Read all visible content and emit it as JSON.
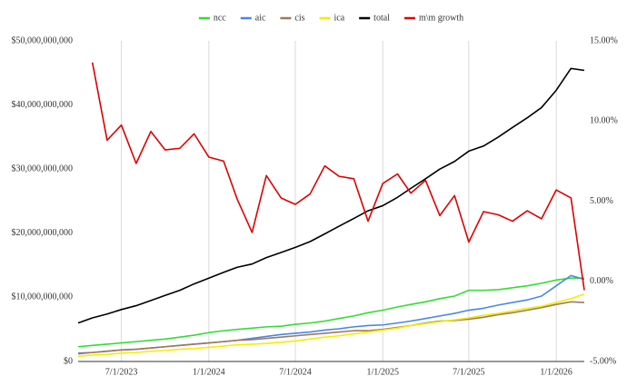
{
  "chart_data": {
    "type": "line",
    "x": [
      "4/1/2023",
      "5/1/2023",
      "6/1/2023",
      "7/1/2023",
      "8/1/2023",
      "9/1/2023",
      "10/1/2023",
      "11/1/2023",
      "12/1/2023",
      "1/1/2024",
      "2/1/2024",
      "3/1/2024",
      "4/1/2024",
      "5/1/2024",
      "6/1/2024",
      "7/1/2024",
      "8/1/2024",
      "9/1/2024",
      "10/1/2024",
      "11/1/2024",
      "12/1/2024",
      "1/1/2025",
      "2/1/2025",
      "3/1/2025",
      "4/1/2025",
      "5/1/2025",
      "6/1/2025",
      "7/1/2025",
      "8/1/2025",
      "9/1/2025",
      "10/1/2025",
      "11/1/2025",
      "12/1/2025",
      "1/1/2026",
      "2/1/2026",
      "3/1/2026"
    ],
    "xlim": [
      "4/1/2023",
      "3/1/2026"
    ],
    "xticks": [
      "7/1/2023",
      "1/1/2024",
      "7/1/2024",
      "1/1/2025",
      "7/1/2025",
      "1/1/2026"
    ],
    "ylim": [
      0,
      50000000000
    ],
    "yticks": [
      {
        "value": 0,
        "label": "$0"
      },
      {
        "value": 10000000000,
        "label": "$10,000,000,000"
      },
      {
        "value": 20000000000,
        "label": "$20,000,000,000"
      },
      {
        "value": 30000000000,
        "label": "$30,000,000,000"
      },
      {
        "value": 40000000000,
        "label": "$40,000,000,000"
      },
      {
        "value": 50000000000,
        "label": "$50,000,000,000"
      }
    ],
    "y2lim": [
      -5,
      15
    ],
    "y2ticks": [
      {
        "value": -5,
        "label": "-5.00%"
      },
      {
        "value": 0,
        "label": "0.00%"
      },
      {
        "value": 5,
        "label": "5.00%"
      },
      {
        "value": 10,
        "label": "10.00%"
      },
      {
        "value": 15,
        "label": "15.00%"
      }
    ],
    "grid": "x",
    "legend": "top",
    "series": [
      {
        "name": "ncc",
        "color": "#33dd33",
        "values": [
          2300000000,
          2500000000,
          2700000000,
          2900000000,
          3100000000,
          3300000000,
          3500000000,
          3800000000,
          4100000000,
          4500000000,
          4800000000,
          5000000000,
          5200000000,
          5400000000,
          5500000000,
          5800000000,
          6000000000,
          6300000000,
          6700000000,
          7100000000,
          7600000000,
          8000000000,
          8500000000,
          8900000000,
          9300000000,
          9800000000,
          10200000000,
          11100000000,
          11100000000,
          11200000000,
          11500000000,
          11800000000,
          12200000000,
          12700000000,
          13000000000,
          13000000000
        ]
      },
      {
        "name": "aic",
        "color": "#4a86e8",
        "values": [
          1300000000,
          1400000000,
          1600000000,
          1800000000,
          1900000000,
          2100000000,
          2300000000,
          2500000000,
          2700000000,
          2900000000,
          3100000000,
          3300000000,
          3600000000,
          3900000000,
          4200000000,
          4400000000,
          4600000000,
          4900000000,
          5100000000,
          5400000000,
          5600000000,
          5700000000,
          6000000000,
          6300000000,
          6700000000,
          7100000000,
          7500000000,
          8000000000,
          8300000000,
          8800000000,
          9200000000,
          9600000000,
          10200000000,
          11800000000,
          13400000000,
          12800000000
        ]
      },
      {
        "name": "cis",
        "color": "#a0785a",
        "values": [
          1200000000,
          1400000000,
          1600000000,
          1800000000,
          1900000000,
          2100000000,
          2300000000,
          2500000000,
          2700000000,
          2900000000,
          3100000000,
          3300000000,
          3400000000,
          3600000000,
          3800000000,
          4000000000,
          4200000000,
          4400000000,
          4600000000,
          4800000000,
          4800000000,
          5000000000,
          5300000000,
          5600000000,
          6000000000,
          6300000000,
          6400000000,
          6600000000,
          6900000000,
          7300000000,
          7600000000,
          8000000000,
          8400000000,
          8900000000,
          9300000000,
          9200000000
        ]
      },
      {
        "name": "ica",
        "color": "#f2ee00",
        "values": [
          800000000,
          1000000000,
          1100000000,
          1300000000,
          1400000000,
          1600000000,
          1700000000,
          1900000000,
          2000000000,
          2200000000,
          2400000000,
          2600000000,
          2700000000,
          2800000000,
          3000000000,
          3200000000,
          3500000000,
          3800000000,
          4000000000,
          4300000000,
          4600000000,
          4900000000,
          5200000000,
          5600000000,
          5900000000,
          6200000000,
          6500000000,
          6800000000,
          7200000000,
          7500000000,
          7900000000,
          8300000000,
          8600000000,
          9200000000,
          9800000000,
          10500000000
        ]
      },
      {
        "name": "total",
        "color": "#000000",
        "values": [
          6000000000,
          6800000000,
          7400000000,
          8100000000,
          8700000000,
          9500000000,
          10300000000,
          11100000000,
          12100000000,
          13000000000,
          13900000000,
          14700000000,
          15200000000,
          16200000000,
          17000000000,
          17800000000,
          18700000000,
          19900000000,
          21100000000,
          22300000000,
          23500000000,
          24300000000,
          25600000000,
          27000000000,
          28500000000,
          30000000000,
          31200000000,
          32800000000,
          33600000000,
          35000000000,
          36500000000,
          38000000000,
          39600000000,
          42300000000,
          45700000000,
          45400000000
        ]
      },
      {
        "name": "m\\m growth",
        "color": "#e00000",
        "axis": "y2",
        "values": [
          null,
          13.65,
          8.8,
          9.75,
          7.35,
          9.35,
          8.2,
          8.3,
          9.2,
          7.75,
          7.5,
          5.1,
          3.05,
          6.6,
          5.2,
          4.8,
          5.45,
          7.2,
          6.55,
          6.4,
          3.75,
          6.1,
          6.7,
          5.5,
          6.3,
          4.1,
          5.35,
          2.45,
          4.35,
          4.15,
          3.75,
          4.4,
          3.9,
          5.7,
          5.2,
          -0.55
        ]
      }
    ]
  }
}
